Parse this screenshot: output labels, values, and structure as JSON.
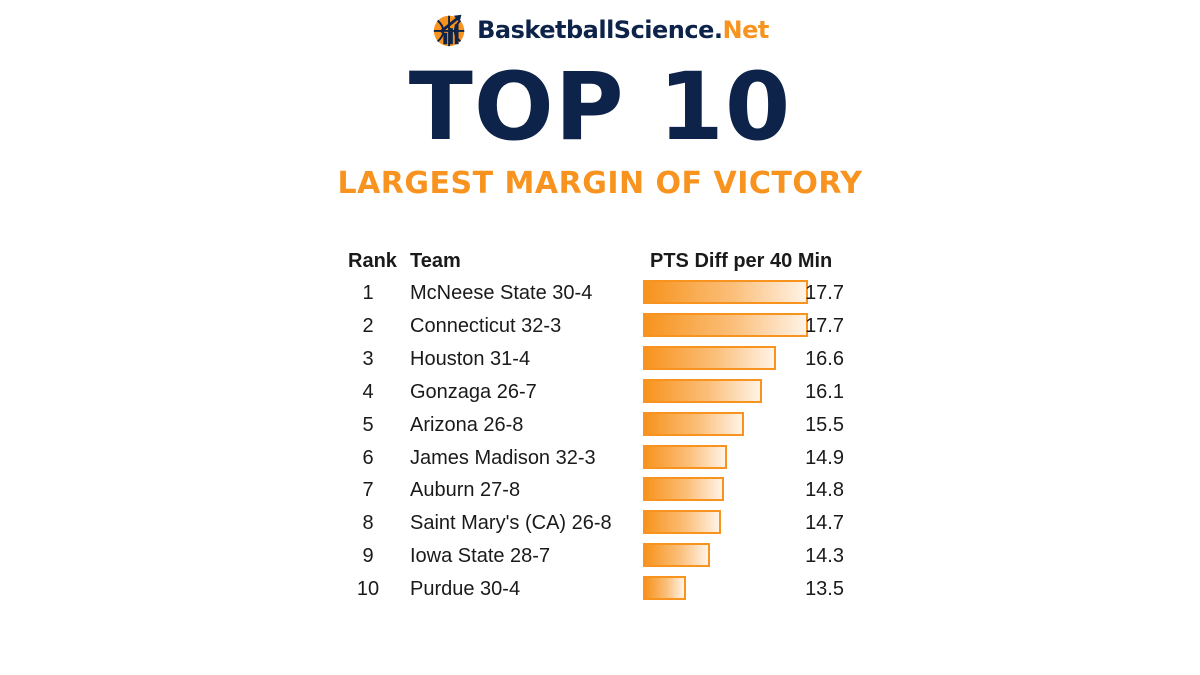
{
  "brand": {
    "name_main": "BasketballScience.",
    "name_suffix": "Net",
    "icon": "basketball-chart-icon"
  },
  "headline": "TOP 10",
  "subhead": "LARGEST MARGIN OF VICTORY",
  "colors": {
    "navy": "#0d2349",
    "orange": "#f7931e"
  },
  "chart_data": {
    "type": "bar",
    "title": "LARGEST MARGIN OF VICTORY",
    "columns": [
      "Rank",
      "Team",
      "PTS Diff per 40 Min"
    ],
    "ranks": [
      "1",
      "2",
      "3",
      "4",
      "5",
      "6",
      "7",
      "8",
      "9",
      "10"
    ],
    "categories": [
      "McNeese State 30-4",
      "Connecticut 32-3",
      "Houston 31-4",
      "Gonzaga 26-7",
      "Arizona 26-8",
      "James Madison 32-3",
      "Auburn 27-8",
      "Saint Mary's (CA) 26-8",
      "Iowa State 28-7",
      "Purdue 30-4"
    ],
    "values": [
      17.7,
      17.7,
      16.6,
      16.1,
      15.5,
      14.9,
      14.8,
      14.7,
      14.3,
      13.5
    ],
    "value_labels": [
      "17.7",
      "17.7",
      "16.6",
      "16.1",
      "15.5",
      "14.9",
      "14.8",
      "14.7",
      "14.3",
      "13.5"
    ],
    "bar_color": "#f7931e",
    "grid": false
  }
}
